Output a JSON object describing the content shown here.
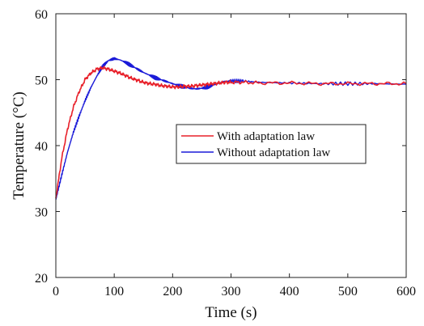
{
  "chart_data": {
    "type": "line",
    "title": "",
    "xlabel": "Time (s)",
    "ylabel": "Temperature (°C)",
    "xlim": [
      0,
      600
    ],
    "ylim": [
      20,
      60
    ],
    "xticks": [
      0,
      100,
      200,
      300,
      400,
      500,
      600
    ],
    "yticks": [
      20,
      30,
      40,
      50,
      60
    ],
    "grid": false,
    "legend_position": "center-right",
    "series": [
      {
        "name": "With adaptation law",
        "color": "#e8202a",
        "x": [
          0,
          10,
          20,
          30,
          40,
          50,
          60,
          70,
          80,
          90,
          100,
          110,
          120,
          130,
          140,
          150,
          160,
          170,
          180,
          190,
          200,
          210,
          220,
          230,
          240,
          250,
          260,
          270,
          280,
          290,
          300,
          320,
          350,
          400,
          450,
          500,
          550,
          600
        ],
        "y": [
          32.0,
          38.0,
          42.5,
          45.8,
          48.2,
          50.0,
          51.0,
          51.6,
          51.8,
          51.6,
          51.3,
          51.0,
          50.6,
          50.2,
          49.9,
          49.6,
          49.4,
          49.3,
          49.1,
          49.0,
          48.9,
          48.9,
          49.0,
          49.0,
          49.1,
          49.2,
          49.3,
          49.4,
          49.5,
          49.6,
          49.6,
          49.6,
          49.5,
          49.5,
          49.4,
          49.4,
          49.4,
          49.4
        ]
      },
      {
        "name": "Without adaptation law",
        "color": "#1a1ad8",
        "x": [
          0,
          10,
          20,
          30,
          40,
          50,
          60,
          70,
          80,
          90,
          100,
          110,
          120,
          130,
          140,
          150,
          160,
          170,
          180,
          190,
          200,
          210,
          220,
          230,
          240,
          250,
          260,
          270,
          280,
          290,
          300,
          320,
          350,
          400,
          450,
          500,
          550,
          600
        ],
        "y": [
          31.8,
          35.5,
          39.0,
          42.0,
          44.5,
          46.8,
          48.8,
          50.5,
          52.0,
          52.9,
          53.2,
          53.0,
          52.6,
          52.1,
          51.6,
          51.1,
          50.7,
          50.3,
          50.0,
          49.7,
          49.4,
          49.1,
          48.9,
          48.7,
          48.6,
          48.7,
          48.9,
          49.2,
          49.5,
          49.7,
          49.8,
          49.8,
          49.6,
          49.5,
          49.4,
          49.4,
          49.4,
          49.3
        ]
      }
    ]
  }
}
